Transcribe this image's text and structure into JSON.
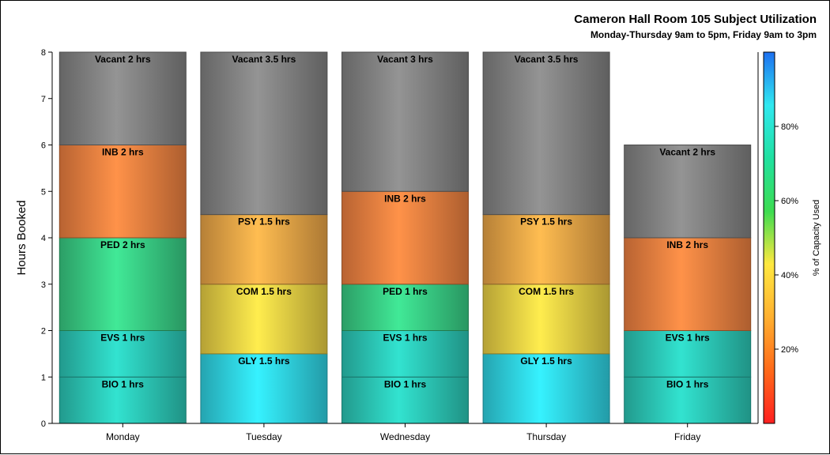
{
  "chart_data": {
    "type": "bar",
    "stacked": true,
    "title": "Cameron Hall Room 105 Subject Utilization",
    "subtitle": "Monday-Thursday 9am to 5pm, Friday 9am to 3pm",
    "ylabel": "Hours Booked",
    "xlabel": "",
    "ylim": [
      0,
      8
    ],
    "yticks": [
      0,
      1,
      2,
      3,
      4,
      5,
      6,
      7,
      8
    ],
    "categories": [
      "Monday",
      "Tuesday",
      "Wednesday",
      "Thursday",
      "Friday"
    ],
    "bars": [
      {
        "category": "Monday",
        "segments": [
          {
            "label": "BIO 1 hrs",
            "value": 1,
            "color": "#2fd6c4"
          },
          {
            "label": "EVS 1 hrs",
            "value": 1,
            "color": "#2fd6c4"
          },
          {
            "label": "PED 2 hrs",
            "value": 2,
            "color": "#3ddc8e"
          },
          {
            "label": "INB 2 hrs",
            "value": 2,
            "color": "#ff8a45"
          },
          {
            "label": "Vacant 2 hrs",
            "value": 2,
            "color": "#8c8c8c"
          }
        ]
      },
      {
        "category": "Tuesday",
        "segments": [
          {
            "label": "GLY 1.5 hrs",
            "value": 1.5,
            "color": "#33e4f5"
          },
          {
            "label": "COM 1.5 hrs",
            "value": 1.5,
            "color": "#fbe04a"
          },
          {
            "label": "PSY 1.5 hrs",
            "value": 1.5,
            "color": "#fdb24c"
          },
          {
            "label": "Vacant 3.5 hrs",
            "value": 3.5,
            "color": "#8c8c8c"
          }
        ]
      },
      {
        "category": "Wednesday",
        "segments": [
          {
            "label": "BIO 1 hrs",
            "value": 1,
            "color": "#2fd6c4"
          },
          {
            "label": "EVS 1 hrs",
            "value": 1,
            "color": "#2fd6c4"
          },
          {
            "label": "PED 1 hrs",
            "value": 1,
            "color": "#3ddc8e"
          },
          {
            "label": "INB 2 hrs",
            "value": 2,
            "color": "#ff8a45"
          },
          {
            "label": "Vacant 3 hrs",
            "value": 3,
            "color": "#8c8c8c"
          }
        ]
      },
      {
        "category": "Thursday",
        "segments": [
          {
            "label": "GLY 1.5 hrs",
            "value": 1.5,
            "color": "#33e4f5"
          },
          {
            "label": "COM 1.5 hrs",
            "value": 1.5,
            "color": "#fbe04a"
          },
          {
            "label": "PSY 1.5 hrs",
            "value": 1.5,
            "color": "#fdb24c"
          },
          {
            "label": "Vacant 3.5 hrs",
            "value": 3.5,
            "color": "#8c8c8c"
          }
        ]
      },
      {
        "category": "Friday",
        "segments": [
          {
            "label": "BIO 1 hrs",
            "value": 1,
            "color": "#2fd6c4"
          },
          {
            "label": "EVS 1 hrs",
            "value": 1,
            "color": "#2fd6c4"
          },
          {
            "label": "INB 2 hrs",
            "value": 2,
            "color": "#ff8a45"
          },
          {
            "label": "Vacant 2 hrs",
            "value": 2,
            "color": "#8c8c8c"
          }
        ]
      }
    ],
    "colorbar": {
      "label": "% of Capacity Used",
      "ticks": [
        20,
        40,
        60,
        80
      ],
      "tick_suffix": "%",
      "range": [
        0,
        100
      ],
      "stops": [
        "#ff2020",
        "#ff6a1a",
        "#ffb030",
        "#ffe840",
        "#3ddc50",
        "#20e0a0",
        "#30e8f0",
        "#1e70f0"
      ]
    },
    "grid": false,
    "legend": "colorbar-right"
  }
}
